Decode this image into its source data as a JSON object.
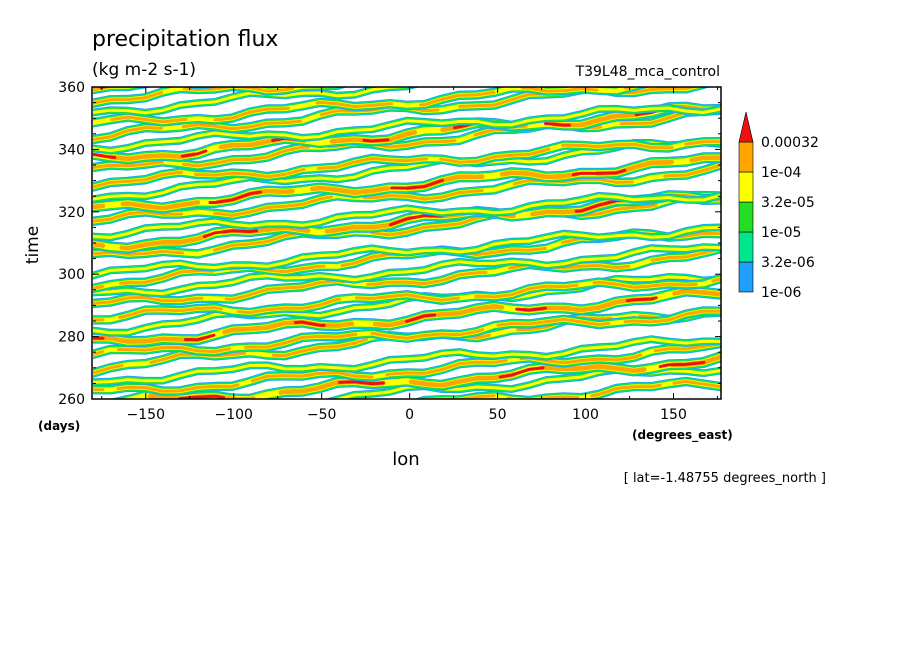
{
  "chart_data": {
    "type": "heatmap",
    "title": "precipitation flux",
    "subtitle": "(kg m-2 s-1)",
    "run_label": "T39L48_mca_control",
    "xlabel": "lon",
    "x_units": "(degrees_east)",
    "ylabel": "time",
    "y_units": "(days)",
    "footer": "[ lat=-1.48755 degrees_north ]",
    "xlim": [
      -180,
      177
    ],
    "ylim": [
      260,
      360
    ],
    "x_ticks": [
      -150,
      -100,
      -50,
      0,
      50,
      100,
      150
    ],
    "x_tick_labels": [
      "−150",
      "−100",
      "−50",
      "0",
      "50",
      "100",
      "150"
    ],
    "y_ticks": [
      260,
      280,
      300,
      320,
      340,
      360
    ],
    "y_tick_labels": [
      "260",
      "280",
      "300",
      "320",
      "340",
      "360"
    ],
    "colorbar": {
      "levels": [
        "1e-06",
        "3.2e-06",
        "1e-05",
        "3.2e-05",
        "1e-04",
        "0.00032"
      ],
      "colors": [
        "#1fa0ff",
        "#00e68c",
        "#22dd22",
        "#ffff00",
        "#ffa500",
        "#ee1111"
      ],
      "extend": "max"
    },
    "bands": [
      {
        "t0": 251,
        "slope": 0.039,
        "level": 4
      },
      {
        "t0": 254,
        "slope": 0.046,
        "level": 3
      },
      {
        "t0": 258,
        "slope": 0.041,
        "level": 5
      },
      {
        "t0": 262,
        "slope": 0.04,
        "level": 4
      },
      {
        "t0": 266,
        "slope": 0.036,
        "level": 3
      },
      {
        "t0": 270,
        "slope": 0.052,
        "level": 4
      },
      {
        "t0": 274,
        "slope": 0.038,
        "level": 4
      },
      {
        "t0": 278,
        "slope": 0.044,
        "level": 5
      },
      {
        "t0": 282,
        "slope": 0.05,
        "level": 3
      },
      {
        "t0": 286,
        "slope": 0.035,
        "level": 4
      },
      {
        "t0": 290,
        "slope": 0.046,
        "level": 4
      },
      {
        "t0": 294,
        "slope": 0.04,
        "level": 3
      },
      {
        "t0": 297,
        "slope": 0.048,
        "level": 4
      },
      {
        "t0": 300,
        "slope": 0.042,
        "level": 3
      },
      {
        "t0": 305,
        "slope": 0.055,
        "level": 4
      },
      {
        "t0": 309,
        "slope": 0.045,
        "level": 5
      },
      {
        "t0": 313,
        "slope": 0.036,
        "level": 3
      },
      {
        "t0": 317,
        "slope": 0.046,
        "level": 4
      },
      {
        "t0": 321,
        "slope": 0.043,
        "level": 5
      },
      {
        "t0": 325,
        "slope": 0.05,
        "level": 3
      },
      {
        "t0": 329,
        "slope": 0.04,
        "level": 4
      },
      {
        "t0": 333,
        "slope": 0.053,
        "level": 4
      },
      {
        "t0": 337,
        "slope": 0.045,
        "level": 5
      },
      {
        "t0": 341,
        "slope": 0.036,
        "level": 3
      },
      {
        "t0": 344,
        "slope": 0.05,
        "level": 4
      },
      {
        "t0": 348,
        "slope": 0.042,
        "level": 4
      },
      {
        "t0": 352,
        "slope": 0.048,
        "level": 3
      },
      {
        "t0": 356,
        "slope": 0.04,
        "level": 4
      },
      {
        "t0": 359,
        "slope": 0.045,
        "level": 5
      }
    ]
  }
}
